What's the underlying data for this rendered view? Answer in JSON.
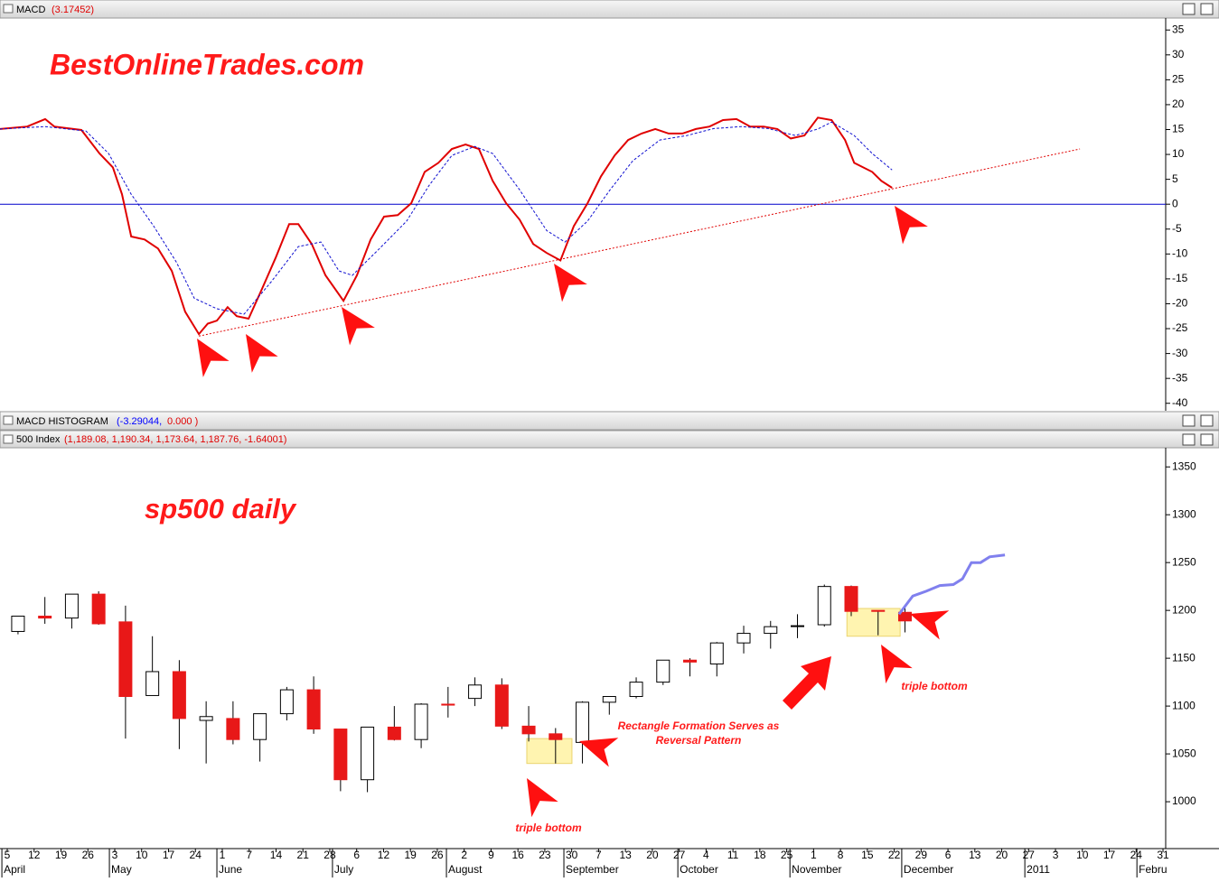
{
  "chart_data": [
    {
      "type": "line",
      "title": "MACD",
      "subtitle": "(3.17452)",
      "xlim": [
        -0.27,
        43.1
      ],
      "ylim": [
        -41.5,
        37.4
      ],
      "yticks": [
        35,
        30,
        25,
        20,
        15,
        10,
        5,
        0,
        -5,
        -10,
        -15,
        -20,
        -25,
        -30,
        -35,
        -40
      ],
      "hline": 0,
      "hline_color": "#0000cc",
      "series": [
        {
          "color": "#e00000",
          "style": "solid",
          "x": [
            -0.27,
            0.74,
            1.41,
            1.75,
            2.76,
            3.43,
            3.93,
            4.27,
            4.61,
            5.11,
            5.61,
            6.12,
            6.62,
            7.13,
            7.46,
            7.8,
            8.2,
            8.54,
            8.98,
            9.48,
            9.99,
            10.49,
            10.83,
            11.33,
            11.84,
            12.51,
            13.01,
            13.52,
            14.02,
            14.53,
            15.03,
            15.53,
            16.04,
            16.54,
            17.05,
            17.55,
            18.06,
            18.56,
            19.06,
            19.57,
            20.07,
            20.58,
            21.08,
            21.59,
            22.09,
            22.6,
            23.1,
            23.6,
            24.11,
            24.61,
            25.12,
            25.62,
            26.13,
            26.63,
            27.13,
            27.64,
            28.14,
            28.65,
            29.15,
            29.66,
            30.16,
            30.67,
            31.17,
            31.51,
            32.18,
            32.52,
            32.92
          ],
          "values": [
            15.1,
            15.6,
            17.1,
            15.6,
            14.9,
            10.2,
            7.4,
            2,
            -6.5,
            -7.1,
            -8.9,
            -13.4,
            -21.6,
            -26.1,
            -24,
            -23.4,
            -20.7,
            -22.5,
            -23,
            -17,
            -10.7,
            -4,
            -4,
            -8,
            -14.3,
            -19.4,
            -14.3,
            -7.1,
            -2.5,
            -2.2,
            0.2,
            6.5,
            8.3,
            11.1,
            12,
            11.1,
            4.7,
            0.2,
            -3.1,
            -8,
            -9.8,
            -11.3,
            -4.4,
            0.2,
            5.6,
            9.8,
            12.9,
            14.2,
            15.1,
            14.2,
            14.2,
            15.1,
            15.6,
            16.9,
            17.1,
            15.6,
            15.6,
            15.1,
            13.2,
            13.8,
            17.4,
            16.9,
            12.9,
            8.3,
            6.5,
            4.7,
            3.3
          ]
        },
        {
          "color": "#1010d0",
          "style": "dashed",
          "x": [
            -0.27,
            1.41,
            2.93,
            3.77,
            4.61,
            5.45,
            6.29,
            6.96,
            7.8,
            8.81,
            9.82,
            10.83,
            11.67,
            12.34,
            12.84,
            13.85,
            14.86,
            15.7,
            16.54,
            17.39,
            18.06,
            19.06,
            20.07,
            20.75,
            21.59,
            22.43,
            23.27,
            24.28,
            25.29,
            26.29,
            27.3,
            28.31,
            29.32,
            30.16,
            30.67,
            31.51,
            32.18,
            32.92
          ],
          "values": [
            15.1,
            15.6,
            14.7,
            10.2,
            2,
            -4.4,
            -11.6,
            -18.9,
            -21,
            -22.1,
            -15.6,
            -8.5,
            -7.6,
            -13.4,
            -14.3,
            -8.9,
            -3.4,
            3.8,
            9.8,
            11.6,
            10.2,
            2.9,
            -5.3,
            -7.6,
            -3.4,
            2.9,
            8.7,
            12.9,
            13.8,
            15.2,
            15.6,
            15.2,
            13.8,
            15.1,
            16.5,
            13.8,
            10.2,
            6.9
          ]
        }
      ],
      "trendline": {
        "color": "#e00000",
        "x": [
          7.13,
          39.91
        ],
        "values": [
          -26.5,
          11.1
        ]
      },
      "annotations": [
        "BestOnlineTrades.com"
      ]
    },
    {
      "type": "candlestick",
      "title": "500 Index",
      "subtitle": "(1,189.08, 1,190.34, 1,173.64, 1,187.76, -1.64001)",
      "xlim": [
        -0.27,
        43.1
      ],
      "ylim": [
        951,
        1370
      ],
      "yticks": [
        1350,
        1300,
        1250,
        1200,
        1150,
        1100,
        1050,
        1000
      ],
      "xticks": [
        {
          "value": 0,
          "label": "5"
        },
        {
          "value": 1,
          "label": "12"
        },
        {
          "value": 2,
          "label": "19"
        },
        {
          "value": 3,
          "label": "26"
        },
        {
          "value": 4,
          "label": "3"
        },
        {
          "value": 5,
          "label": "10"
        },
        {
          "value": 6,
          "label": "17"
        },
        {
          "value": 7,
          "label": "24"
        },
        {
          "value": 8,
          "label": "1"
        },
        {
          "value": 9,
          "label": "7"
        },
        {
          "value": 10,
          "label": "14"
        },
        {
          "value": 11,
          "label": "21"
        },
        {
          "value": 12,
          "label": "28"
        },
        {
          "value": 13,
          "label": "6"
        },
        {
          "value": 14,
          "label": "12"
        },
        {
          "value": 15,
          "label": "19"
        },
        {
          "value": 16,
          "label": "26"
        },
        {
          "value": 17,
          "label": "2"
        },
        {
          "value": 18,
          "label": "9"
        },
        {
          "value": 19,
          "label": "16"
        },
        {
          "value": 20,
          "label": "23"
        },
        {
          "value": 21,
          "label": "30"
        },
        {
          "value": 22,
          "label": "7"
        },
        {
          "value": 23,
          "label": "13"
        },
        {
          "value": 24,
          "label": "20"
        },
        {
          "value": 25,
          "label": "27"
        },
        {
          "value": 26,
          "label": "4"
        },
        {
          "value": 27,
          "label": "11"
        },
        {
          "value": 28,
          "label": "18"
        },
        {
          "value": 29,
          "label": "25"
        },
        {
          "value": 30,
          "label": "1"
        },
        {
          "value": 31,
          "label": "8"
        },
        {
          "value": 32,
          "label": "15"
        },
        {
          "value": 33,
          "label": "22"
        },
        {
          "value": 34,
          "label": "29"
        },
        {
          "value": 35,
          "label": "6"
        },
        {
          "value": 36,
          "label": "13"
        },
        {
          "value": 37,
          "label": "20"
        },
        {
          "value": 38,
          "label": "27"
        },
        {
          "value": 39,
          "label": "3"
        },
        {
          "value": 40,
          "label": "10"
        },
        {
          "value": 41,
          "label": "17"
        },
        {
          "value": 42,
          "label": "24"
        },
        {
          "value": 43,
          "label": "31"
        }
      ],
      "month_ticks": [
        {
          "value": -0.2,
          "label": "April"
        },
        {
          "value": 3.8,
          "label": "May"
        },
        {
          "value": 7.8,
          "label": "June"
        },
        {
          "value": 12.1,
          "label": "July"
        },
        {
          "value": 16.34,
          "label": "August"
        },
        {
          "value": 20.71,
          "label": "September"
        },
        {
          "value": 24.95,
          "label": "October"
        },
        {
          "value": 29.12,
          "label": "November"
        },
        {
          "value": 33.28,
          "label": "December"
        },
        {
          "value": 37.86,
          "label": "2011"
        },
        {
          "value": 42.03,
          "label": "Febru"
        }
      ],
      "up_color": "#ffffff",
      "down_color": "#e81818",
      "x": [
        0.4,
        1.4,
        2.4,
        3.4,
        4.4,
        5.4,
        6.4,
        7.4,
        8.4,
        9.4,
        10.4,
        11.4,
        12.4,
        13.4,
        14.4,
        15.4,
        16.4,
        17.4,
        18.4,
        19.4,
        20.4,
        21.4,
        22.4,
        23.4,
        24.4,
        25.4,
        26.4,
        27.4,
        28.4,
        29.4,
        30.4,
        31.4,
        32.4,
        33.4
      ],
      "open": [
        1178,
        1194,
        1192,
        1217,
        1188,
        1111,
        1136,
        1085,
        1087,
        1065,
        1092,
        1117,
        1076,
        1023,
        1078,
        1065,
        1102,
        1108,
        1122,
        1079,
        1071,
        1062,
        1104,
        1110,
        1125,
        1148,
        1144,
        1166,
        1176,
        1184,
        1185,
        1225,
        1200,
        1198
      ],
      "high": [
        1194,
        1214,
        1217,
        1220,
        1205,
        1173,
        1148,
        1105,
        1105,
        1092,
        1120,
        1131,
        1076,
        1078,
        1100,
        1103,
        1120,
        1130,
        1129,
        1100,
        1077,
        1105,
        1110,
        1130,
        1148,
        1150,
        1167,
        1184,
        1189,
        1196,
        1227,
        1226,
        1200,
        1205
      ],
      "low": [
        1175,
        1186,
        1181,
        1185,
        1066,
        1111,
        1055,
        1040,
        1060,
        1042,
        1085,
        1071,
        1011,
        1010,
        1064,
        1056,
        1088,
        1100,
        1076,
        1063,
        1040,
        1040,
        1091,
        1108,
        1122,
        1131,
        1131,
        1155,
        1160,
        1171,
        1183,
        1194,
        1174,
        1177
      ],
      "close": [
        1194,
        1192,
        1217,
        1186,
        1110,
        1136,
        1087,
        1089,
        1065,
        1092,
        1117,
        1076,
        1023,
        1078,
        1065,
        1102,
        1101,
        1122,
        1079,
        1071,
        1065,
        1104,
        1110,
        1125,
        1148,
        1146,
        1166,
        1176,
        1183,
        1184,
        1225,
        1199,
        1199,
        1189
      ],
      "projection": {
        "color": "#8080ee",
        "x": [
          33.18,
          33.69,
          34.19,
          34.7,
          35.2,
          35.54,
          35.87,
          36.21,
          36.55,
          37.12
        ],
        "values": [
          1196,
          1215,
          1220,
          1226,
          1227,
          1233,
          1250,
          1250,
          1256,
          1258
        ]
      },
      "highlights": [
        {
          "x": [
            19.33,
            21.01
          ],
          "y": [
            1040,
            1066
          ]
        },
        {
          "x": [
            31.24,
            33.22
          ],
          "y": [
            1173,
            1202
          ]
        }
      ],
      "highlight_color": "#fff3a8",
      "annotations": [
        "sp500 daily",
        "Rectangle Formation Serves as",
        "Reversal Pattern",
        "triple bottom",
        "triple bottom"
      ]
    }
  ],
  "histogram": {
    "title": "MACD HISTOGRAM",
    "values": [
      "(-3.29044,",
      "0.000 )"
    ],
    "colors": [
      "#0000ff",
      "#e00000"
    ]
  }
}
